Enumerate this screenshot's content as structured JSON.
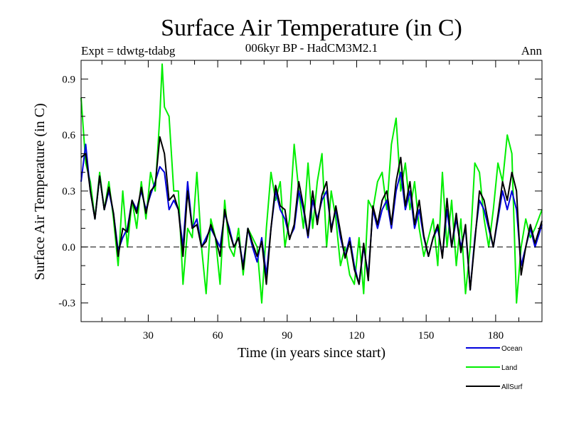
{
  "chart_data": {
    "type": "line",
    "title": "Surface Air Temperature (in C)",
    "subtitle": "006kyr BP - HadCM3M2.1",
    "experiment": "Expt = tdwtg-tdabg",
    "period": "Ann",
    "xlabel": "Time (in years since start)",
    "ylabel": "Surface Air Temperature (in C)",
    "xlim": [
      1,
      200
    ],
    "ylim": [
      -0.4,
      1.0
    ],
    "xticks": [
      30,
      60,
      90,
      120,
      150,
      180
    ],
    "xtick_labels": [
      "30",
      "60",
      "90",
      "120",
      "150",
      "180"
    ],
    "yticks": [
      -0.3,
      0.0,
      0.3,
      0.6,
      0.9
    ],
    "ytick_labels": [
      "-0.3",
      "0.0",
      "0.3",
      "0.6",
      "0.9"
    ],
    "reference_line": 0.0,
    "legend_position": "bottom-right",
    "series": [
      {
        "name": "Land",
        "color": "#00ee00",
        "x": [
          1,
          3,
          5,
          7,
          9,
          11,
          13,
          15,
          17,
          19,
          21,
          23,
          25,
          27,
          29,
          31,
          33,
          35,
          36,
          37,
          39,
          41,
          43,
          45,
          47,
          49,
          51,
          53,
          55,
          57,
          59,
          61,
          63,
          65,
          67,
          69,
          71,
          73,
          75,
          77,
          79,
          81,
          83,
          85,
          87,
          89,
          91,
          93,
          95,
          97,
          99,
          101,
          103,
          105,
          107,
          109,
          111,
          113,
          115,
          117,
          119,
          121,
          123,
          125,
          127,
          129,
          131,
          133,
          135,
          137,
          139,
          141,
          143,
          145,
          147,
          149,
          151,
          153,
          155,
          157,
          159,
          161,
          163,
          165,
          167,
          169,
          171,
          173,
          175,
          177,
          179,
          181,
          183,
          185,
          187,
          189,
          191,
          193,
          195,
          197,
          200
        ],
        "values": [
          0.8,
          0.45,
          0.35,
          0.15,
          0.4,
          0.2,
          0.35,
          0.15,
          -0.1,
          0.3,
          0.0,
          0.25,
          0.1,
          0.35,
          0.15,
          0.4,
          0.3,
          0.7,
          0.98,
          0.75,
          0.7,
          0.3,
          0.3,
          -0.2,
          0.1,
          0.05,
          0.4,
          0.0,
          -0.25,
          0.15,
          0.05,
          -0.2,
          0.25,
          0.0,
          -0.05,
          0.1,
          -0.15,
          0.1,
          0.05,
          0.0,
          -0.3,
          0.1,
          0.4,
          0.25,
          0.35,
          0.0,
          0.15,
          0.55,
          0.3,
          0.1,
          0.45,
          0.1,
          0.35,
          0.5,
          0.0,
          0.3,
          0.15,
          -0.1,
          0.0,
          -0.15,
          -0.2,
          0.05,
          -0.25,
          0.25,
          0.2,
          0.35,
          0.4,
          0.2,
          0.55,
          0.69,
          0.3,
          0.45,
          0.2,
          0.35,
          0.1,
          -0.05,
          0.05,
          0.15,
          -0.1,
          0.4,
          0.0,
          0.25,
          -0.1,
          0.15,
          -0.25,
          0.0,
          0.45,
          0.4,
          0.15,
          0.0,
          0.2,
          0.45,
          0.35,
          0.6,
          0.5,
          -0.3,
          0.0,
          0.15,
          0.05,
          0.1,
          0.2
        ]
      },
      {
        "name": "Ocean",
        "color": "#0000dd",
        "x": [
          1,
          3,
          5,
          7,
          9,
          11,
          13,
          15,
          17,
          19,
          21,
          23,
          25,
          27,
          29,
          31,
          33,
          35,
          37,
          39,
          41,
          43,
          45,
          47,
          49,
          51,
          53,
          55,
          57,
          59,
          61,
          63,
          65,
          67,
          69,
          71,
          73,
          75,
          77,
          79,
          81,
          83,
          85,
          87,
          89,
          91,
          93,
          95,
          97,
          99,
          101,
          103,
          105,
          107,
          109,
          111,
          113,
          115,
          117,
          119,
          121,
          123,
          125,
          127,
          129,
          131,
          133,
          135,
          137,
          139,
          141,
          143,
          145,
          147,
          149,
          151,
          153,
          155,
          157,
          159,
          161,
          163,
          165,
          167,
          169,
          171,
          173,
          175,
          177,
          179,
          181,
          183,
          185,
          187,
          189,
          191,
          193,
          195,
          197,
          200
        ],
        "values": [
          0.35,
          0.55,
          0.3,
          0.15,
          0.38,
          0.2,
          0.3,
          0.18,
          -0.02,
          0.05,
          0.1,
          0.25,
          0.2,
          0.3,
          0.2,
          0.28,
          0.35,
          0.43,
          0.4,
          0.2,
          0.25,
          0.2,
          0.0,
          0.35,
          0.1,
          0.15,
          0.0,
          0.05,
          0.1,
          0.05,
          0.0,
          0.18,
          0.1,
          0.0,
          0.05,
          -0.1,
          0.1,
          0.0,
          -0.08,
          0.05,
          -0.15,
          0.1,
          0.3,
          0.2,
          0.15,
          0.05,
          0.1,
          0.3,
          0.2,
          0.05,
          0.25,
          0.15,
          0.25,
          0.3,
          0.1,
          0.2,
          0.05,
          -0.05,
          0.05,
          -0.1,
          -0.2,
          0.0,
          -0.15,
          0.2,
          0.1,
          0.2,
          0.25,
          0.1,
          0.3,
          0.4,
          0.2,
          0.3,
          0.1,
          0.2,
          0.05,
          -0.05,
          0.05,
          0.1,
          -0.05,
          0.2,
          0.0,
          0.15,
          0.0,
          0.1,
          -0.23,
          0.05,
          0.25,
          0.2,
          0.1,
          0.0,
          0.15,
          0.3,
          0.2,
          0.3,
          0.2,
          -0.1,
          0.0,
          0.1,
          0.0,
          0.12
        ]
      },
      {
        "name": "AllSurf",
        "color": "#000000",
        "x": [
          1,
          3,
          5,
          7,
          9,
          11,
          13,
          15,
          17,
          19,
          21,
          23,
          25,
          27,
          29,
          31,
          33,
          35,
          37,
          39,
          41,
          43,
          45,
          47,
          49,
          51,
          53,
          55,
          57,
          59,
          61,
          63,
          65,
          67,
          69,
          71,
          73,
          75,
          77,
          79,
          81,
          83,
          85,
          87,
          89,
          91,
          93,
          95,
          97,
          99,
          101,
          103,
          105,
          107,
          109,
          111,
          113,
          115,
          117,
          119,
          121,
          123,
          125,
          127,
          129,
          131,
          133,
          135,
          137,
          139,
          141,
          143,
          145,
          147,
          149,
          151,
          153,
          155,
          157,
          159,
          161,
          163,
          165,
          167,
          169,
          171,
          173,
          175,
          177,
          179,
          181,
          183,
          185,
          187,
          189,
          191,
          193,
          195,
          197,
          200
        ],
        "values": [
          0.48,
          0.5,
          0.3,
          0.15,
          0.38,
          0.2,
          0.32,
          0.18,
          -0.05,
          0.1,
          0.08,
          0.25,
          0.18,
          0.32,
          0.18,
          0.3,
          0.33,
          0.59,
          0.5,
          0.25,
          0.28,
          0.2,
          -0.05,
          0.3,
          0.1,
          0.12,
          0.0,
          0.03,
          0.12,
          0.05,
          -0.05,
          0.2,
          0.08,
          0.0,
          0.05,
          -0.12,
          0.1,
          0.02,
          -0.05,
          0.03,
          -0.2,
          0.1,
          0.33,
          0.22,
          0.2,
          0.04,
          0.12,
          0.35,
          0.22,
          0.06,
          0.3,
          0.12,
          0.28,
          0.35,
          0.08,
          0.22,
          0.08,
          -0.06,
          0.03,
          -0.12,
          -0.2,
          0.02,
          -0.18,
          0.22,
          0.12,
          0.25,
          0.3,
          0.12,
          0.35,
          0.48,
          0.22,
          0.35,
          0.12,
          0.25,
          0.06,
          -0.05,
          0.05,
          0.12,
          -0.06,
          0.26,
          0.0,
          0.18,
          -0.03,
          0.12,
          -0.23,
          0.03,
          0.3,
          0.25,
          0.12,
          0.0,
          0.17,
          0.35,
          0.25,
          0.4,
          0.3,
          -0.15,
          0.0,
          0.12,
          0.02,
          0.14
        ]
      }
    ]
  }
}
